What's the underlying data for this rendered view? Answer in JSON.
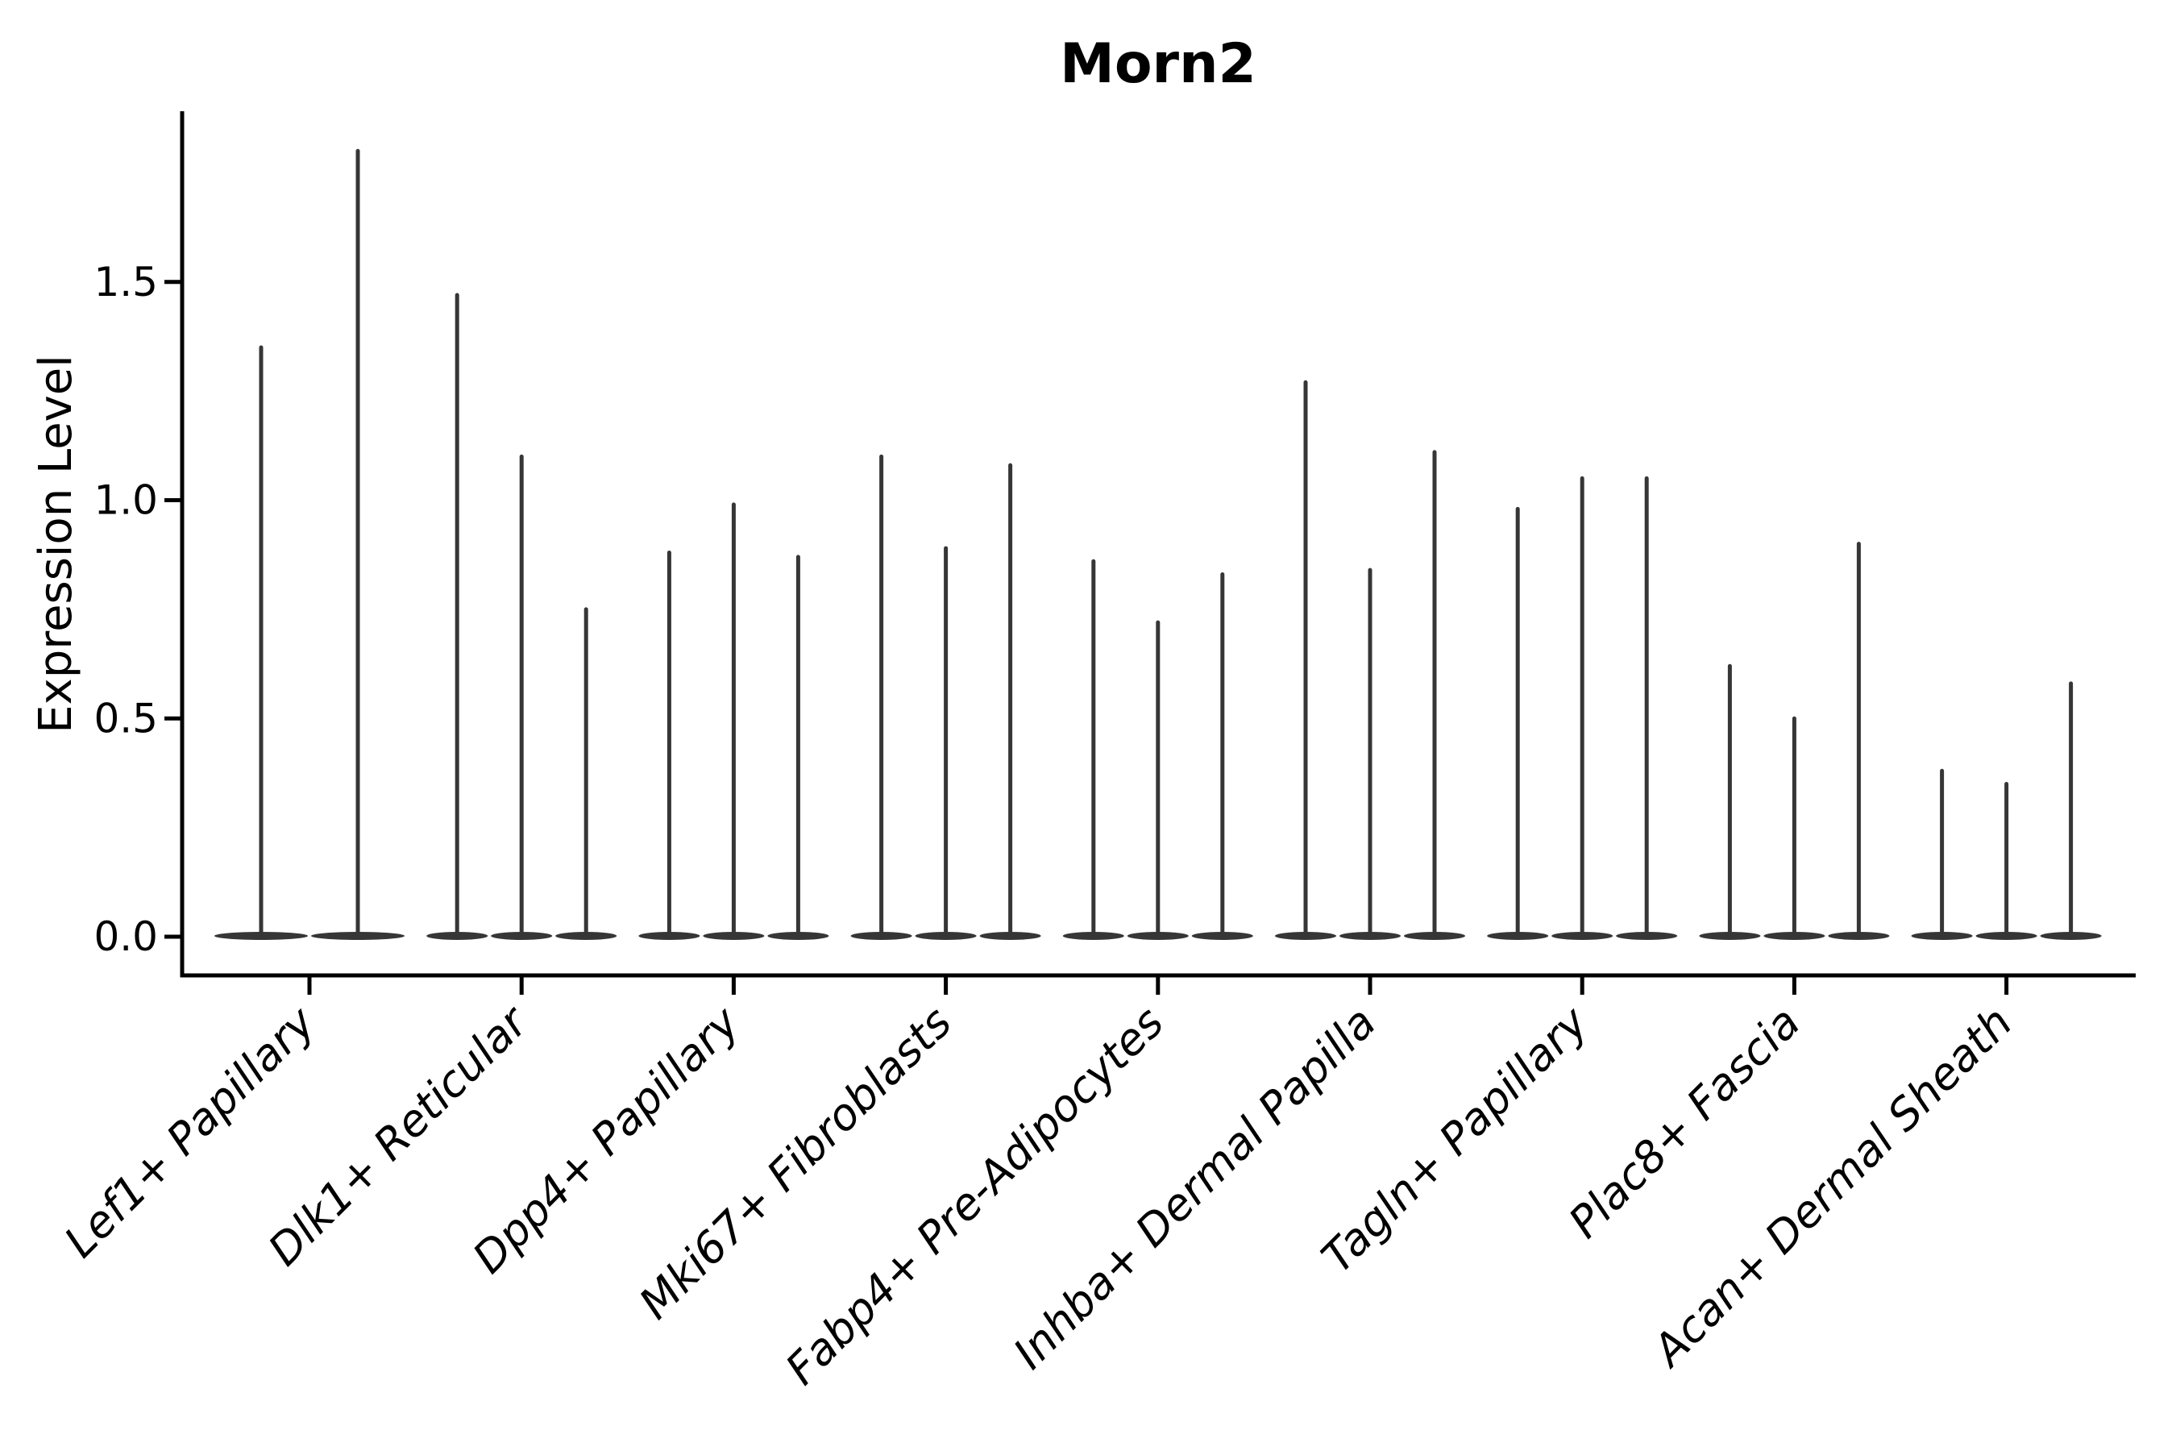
{
  "title": "Morn2",
  "ylabel": "Expression Level",
  "colors": {
    "violin": "#363636",
    "axis": "#000000",
    "text": "#000000",
    "background": "#ffffff"
  },
  "chart_data": {
    "type": "violin",
    "title": "Morn2",
    "xlabel": "",
    "ylabel": "Expression Level",
    "ylim": [
      -0.09,
      1.89
    ],
    "yticks": [
      "0.0",
      "0.5",
      "1.0",
      "1.5"
    ],
    "ytick_values": [
      0.0,
      0.5,
      1.0,
      1.5
    ],
    "grid": false,
    "legend": "none",
    "description": "Single-gene violin plot of Morn2 expression across dermal fibroblast cell types; each category contains adjacent narrow violins that collapse to a flat base at 0 with a thin spike up to the maximum expression value.",
    "categories": [
      "Lef1+ Papillary",
      "Dlk1+ Reticular",
      "Dpp4+ Papillary",
      "Mki67+ Fibroblasts",
      "Fabp4+ Pre-Adipocytes",
      "Inhba+ Dermal Papilla",
      "Tagln+ Papillary",
      "Plac8+ Fascia",
      "Acan+ Dermal Sheath"
    ],
    "groups": [
      {
        "label": "Lef1+ Papillary",
        "violin_spike_maxima": [
          1.35,
          1.8
        ]
      },
      {
        "label": "Dlk1+ Reticular",
        "violin_spike_maxima": [
          1.47,
          1.1,
          0.75
        ]
      },
      {
        "label": "Dpp4+ Papillary",
        "violin_spike_maxima": [
          0.88,
          0.99,
          0.87
        ]
      },
      {
        "label": "Mki67+ Fibroblasts",
        "violin_spike_maxima": [
          1.1,
          0.89,
          1.08
        ]
      },
      {
        "label": "Fabp4+ Pre-Adipocytes",
        "violin_spike_maxima": [
          0.86,
          0.72,
          0.83
        ]
      },
      {
        "label": "Inhba+ Dermal Papilla",
        "violin_spike_maxima": [
          1.27,
          0.84,
          1.11
        ]
      },
      {
        "label": "Tagln+ Papillary",
        "violin_spike_maxima": [
          0.98,
          1.05,
          1.05
        ]
      },
      {
        "label": "Plac8+ Fascia",
        "violin_spike_maxima": [
          0.62,
          0.5,
          0.9
        ]
      },
      {
        "label": "Acan+ Dermal Sheath",
        "violin_spike_maxima": [
          0.38,
          0.35,
          0.58
        ]
      }
    ],
    "baseline_value": 0.0
  }
}
